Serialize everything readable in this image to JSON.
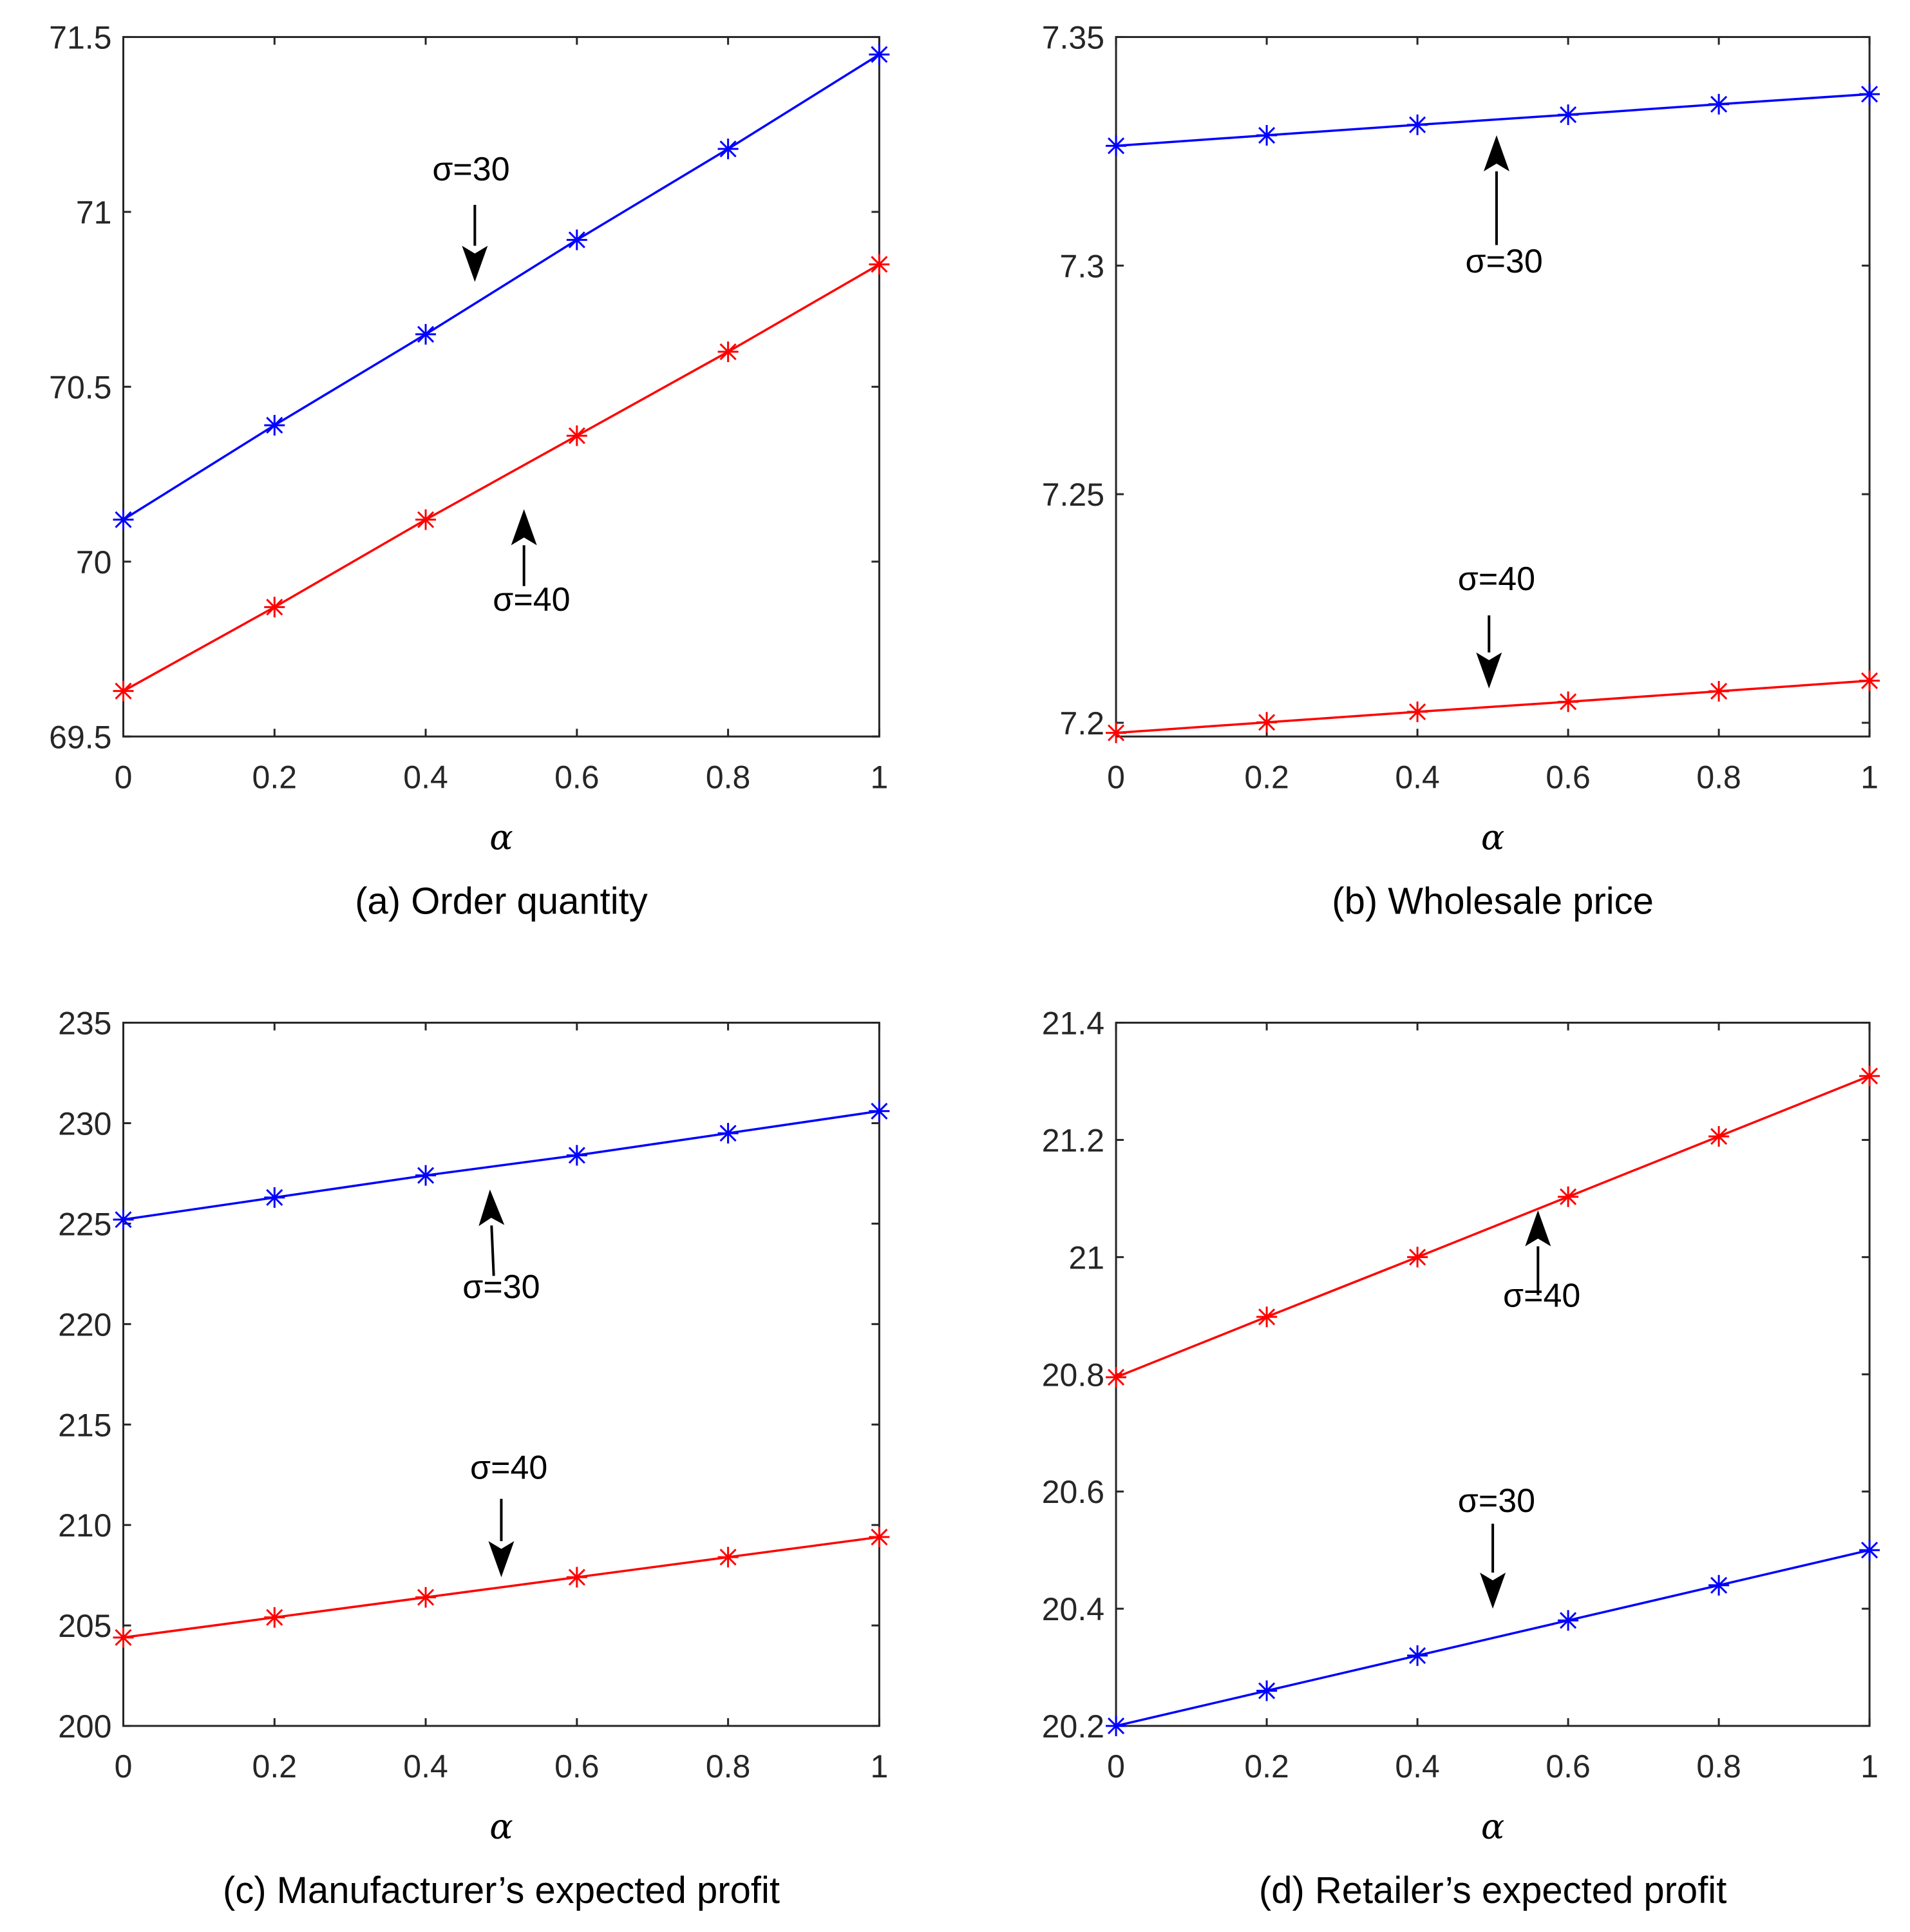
{
  "chart_data": [
    {
      "type": "line",
      "panel": "a",
      "caption": "(a) Order quantity",
      "xlabel": "α",
      "ylabel": "",
      "x": [
        0,
        0.2,
        0.4,
        0.6,
        0.8,
        1
      ],
      "xlim": [
        0,
        1
      ],
      "ylim": [
        69.5,
        71.5
      ],
      "xticks": [
        0,
        0.2,
        0.4,
        0.6,
        0.8,
        1
      ],
      "xtick_labels": [
        "0",
        "0.2",
        "0.4",
        "0.6",
        "0.8",
        "1"
      ],
      "yticks": [
        69.5,
        70,
        70.5,
        71,
        71.5
      ],
      "ytick_labels": [
        "69.5",
        "70",
        "70.5",
        "71",
        "71.5"
      ],
      "marker": "*",
      "series": [
        {
          "name": "σ=30",
          "color": "#0000ff",
          "values": [
            70.12,
            70.39,
            70.65,
            70.92,
            71.18,
            71.45
          ]
        },
        {
          "name": "σ=40",
          "color": "#ff0000",
          "values": [
            69.63,
            69.87,
            70.12,
            70.36,
            70.6,
            70.85
          ]
        }
      ],
      "annotations": [
        {
          "text": "σ=30",
          "series": 0,
          "direction": "down",
          "label_x": 0.46,
          "label_y": 71.09,
          "arrow_from": [
            0.465,
            71.02
          ],
          "arrow_to": [
            0.465,
            70.8
          ]
        },
        {
          "text": "σ=40",
          "series": 1,
          "direction": "up",
          "label_x": 0.54,
          "label_y": 69.86,
          "arrow_from": [
            0.53,
            69.93
          ],
          "arrow_to": [
            0.53,
            70.15
          ]
        }
      ]
    },
    {
      "type": "line",
      "panel": "b",
      "caption": "(b) Wholesale price",
      "xlabel": "α",
      "ylabel": "",
      "x": [
        0,
        0.2,
        0.4,
        0.6,
        0.8,
        1
      ],
      "xlim": [
        0,
        1
      ],
      "ylim": [
        7.197,
        7.35
      ],
      "xticks": [
        0,
        0.2,
        0.4,
        0.6,
        0.8,
        1
      ],
      "xtick_labels": [
        "0",
        "0.2",
        "0.4",
        "0.6",
        "0.8",
        "1"
      ],
      "yticks": [
        7.2,
        7.25,
        7.3,
        7.35
      ],
      "ytick_labels": [
        "7.2",
        "7.25",
        "7.3",
        "7.35"
      ],
      "marker": "*",
      "series": [
        {
          "name": "σ=30",
          "color": "#0000ff",
          "values": [
            7.3262,
            7.3285,
            7.3308,
            7.333,
            7.3353,
            7.3375
          ]
        },
        {
          "name": "σ=40",
          "color": "#ff0000",
          "values": [
            7.1978,
            7.2001,
            7.2024,
            7.2046,
            7.2069,
            7.2092
          ]
        }
      ],
      "annotations": [
        {
          "text": "σ=30",
          "series": 0,
          "direction": "up",
          "label_x": 0.515,
          "label_y": 7.2985,
          "arrow_from": [
            0.505,
            7.3045
          ],
          "arrow_to": [
            0.505,
            7.3285
          ]
        },
        {
          "text": "σ=40",
          "series": 1,
          "direction": "down",
          "label_x": 0.505,
          "label_y": 7.229,
          "arrow_from": [
            0.495,
            7.2235
          ],
          "arrow_to": [
            0.495,
            7.2075
          ]
        }
      ]
    },
    {
      "type": "line",
      "panel": "c",
      "caption": "(c) Manufacturer’s expected profit",
      "xlabel": "α",
      "ylabel": "",
      "x": [
        0,
        0.2,
        0.4,
        0.6,
        0.8,
        1
      ],
      "xlim": [
        0,
        1
      ],
      "ylim": [
        200,
        235
      ],
      "xticks": [
        0,
        0.2,
        0.4,
        0.6,
        0.8,
        1
      ],
      "xtick_labels": [
        "0",
        "0.2",
        "0.4",
        "0.6",
        "0.8",
        "1"
      ],
      "yticks": [
        200,
        205,
        210,
        215,
        220,
        225,
        230,
        235
      ],
      "ytick_labels": [
        "200",
        "205",
        "210",
        "215",
        "220",
        "225",
        "230",
        "235"
      ],
      "marker": "*",
      "series": [
        {
          "name": "σ=30",
          "color": "#0000ff",
          "values": [
            225.2,
            226.3,
            227.4,
            228.4,
            229.5,
            230.6
          ]
        },
        {
          "name": "σ=40",
          "color": "#ff0000",
          "values": [
            204.4,
            205.4,
            206.4,
            207.4,
            208.4,
            209.4
          ]
        }
      ],
      "annotations": [
        {
          "text": "σ=30",
          "series": 0,
          "direction": "up",
          "label_x": 0.5,
          "label_y": 221.3,
          "arrow_from": [
            0.49,
            222.4
          ],
          "arrow_to": [
            0.485,
            226.7
          ]
        },
        {
          "text": "σ=40",
          "series": 1,
          "direction": "down",
          "label_x": 0.51,
          "label_y": 212.3,
          "arrow_from": [
            0.5,
            211.3
          ],
          "arrow_to": [
            0.5,
            207.4
          ]
        }
      ]
    },
    {
      "type": "line",
      "panel": "d",
      "caption": "(d) Retailer’s expected profit",
      "xlabel": "α",
      "ylabel": "",
      "x": [
        0,
        0.2,
        0.4,
        0.6,
        0.8,
        1
      ],
      "xlim": [
        0,
        1
      ],
      "ylim": [
        20.2,
        21.4
      ],
      "xticks": [
        0,
        0.2,
        0.4,
        0.6,
        0.8,
        1
      ],
      "xtick_labels": [
        "0",
        "0.2",
        "0.4",
        "0.6",
        "0.8",
        "1"
      ],
      "yticks": [
        20.2,
        20.4,
        20.6,
        20.8,
        21,
        21.2,
        21.4
      ],
      "ytick_labels": [
        "20.2",
        "20.4",
        "20.6",
        "20.8",
        "21",
        "21.2",
        "21.4"
      ],
      "marker": "*",
      "series": [
        {
          "name": "σ=30",
          "color": "#0000ff",
          "values": [
            20.2,
            20.26,
            20.32,
            20.38,
            20.44,
            20.5
          ]
        },
        {
          "name": "σ=40",
          "color": "#ff0000",
          "values": [
            20.795,
            20.898,
            21.0,
            21.103,
            21.206,
            21.309
          ]
        }
      ],
      "annotations": [
        {
          "text": "σ=30",
          "series": 0,
          "direction": "down",
          "label_x": 0.505,
          "label_y": 20.565,
          "arrow_from": [
            0.5,
            20.545
          ],
          "arrow_to": [
            0.5,
            20.4
          ]
        },
        {
          "text": "σ=40",
          "series": 1,
          "direction": "up",
          "label_x": 0.565,
          "label_y": 20.915,
          "arrow_from": [
            0.56,
            20.935
          ],
          "arrow_to": [
            0.56,
            21.08
          ]
        }
      ]
    }
  ]
}
